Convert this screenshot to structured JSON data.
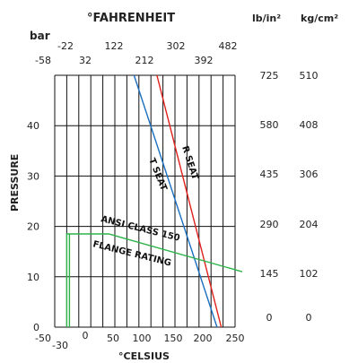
{
  "chart_data": {
    "type": "line",
    "title": "",
    "headers": {
      "fahrenheit": "°FAHRENHEIT",
      "bar": "bar",
      "psi": "lb/in²",
      "kgcm": "kg/cm²"
    },
    "xlabel": "°CELSIUS",
    "ylabel": "PRESSURE",
    "xlim": [
      -50,
      250
    ],
    "ylim": [
      0,
      50
    ],
    "grid": true,
    "celsius_ticks": [
      "-50",
      "-30",
      "0",
      "50",
      "100",
      "150",
      "200",
      "250"
    ],
    "bar_ticks": [
      "0",
      "10",
      "20",
      "30",
      "40"
    ],
    "fahrenheit_ticks_top": [
      "-22",
      "122",
      "302",
      "482"
    ],
    "fahrenheit_ticks_bottom": [
      "-58",
      "32",
      "212",
      "392"
    ],
    "psi_ticks": [
      "0",
      "145",
      "290",
      "435",
      "580",
      "725"
    ],
    "kgcm_ticks": [
      "0",
      "102",
      "204",
      "306",
      "408",
      "510"
    ],
    "series": [
      {
        "name": "R SEAT",
        "color": "#e0201b",
        "x": [
          120,
          227
        ],
        "y": [
          50,
          0
        ]
      },
      {
        "name": "T SEAT",
        "color": "#1a6fc0",
        "x": [
          82,
          220
        ],
        "y": [
          50,
          0
        ]
      },
      {
        "name": "ANSI CLASS 150 FLANGE RATING",
        "color": "#2db34a",
        "x": [
          -30,
          -30,
          40,
          262
        ],
        "y": [
          0,
          18.5,
          18.5,
          11
        ]
      }
    ],
    "annotations": [
      {
        "id": "r_seat",
        "text": "R SEAT"
      },
      {
        "id": "t_seat",
        "text": "T SEAT"
      },
      {
        "id": "ansi",
        "text": "ANSI CLASS 150"
      },
      {
        "id": "flange",
        "text": "FLANGE RATING"
      }
    ]
  }
}
